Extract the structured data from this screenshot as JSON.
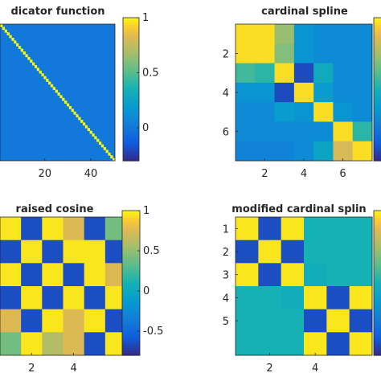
{
  "chart_data": [
    {
      "type": "heatmap",
      "title": "dicator function",
      "grid_size": 50,
      "x_tick_labels": [
        "20",
        "40"
      ],
      "x_tick_values": [
        20,
        40
      ],
      "y_tick_labels": [],
      "colorbar": {
        "min": -0.3,
        "max": 1.0,
        "tick_labels": [
          "1",
          "0.5",
          "0"
        ],
        "tick_values": [
          1,
          0.5,
          0
        ]
      },
      "values": "identity",
      "notes_off_diagonal": 0.0
    },
    {
      "type": "heatmap",
      "title": "cardinal spline",
      "x_tick_labels": [
        "2",
        "4",
        "6"
      ],
      "x_tick_values": [
        2,
        4,
        6
      ],
      "y_tick_labels": [
        "2",
        "4",
        "6"
      ],
      "y_tick_values": [
        2,
        4,
        6
      ],
      "colorbar": {
        "min": -0.3,
        "max": 1.0,
        "tick_labels": [],
        "tick_values": []
      },
      "values": [
        [
          0.95,
          0.95,
          0.65,
          0.15,
          0.1,
          0.1,
          0.1
        ],
        [
          0.95,
          0.95,
          0.6,
          0.15,
          0.1,
          0.1,
          0.1
        ],
        [
          0.45,
          0.4,
          0.95,
          -0.2,
          0.3,
          0.1,
          0.1
        ],
        [
          0.15,
          0.15,
          -0.2,
          0.95,
          0.2,
          0.1,
          0.1
        ],
        [
          0.1,
          0.1,
          0.2,
          0.15,
          0.95,
          0.15,
          0.1
        ],
        [
          0.1,
          0.1,
          0.1,
          0.1,
          0.1,
          0.95,
          0.4
        ],
        [
          0.05,
          0.05,
          0.05,
          0.1,
          0.25,
          0.8,
          0.95
        ]
      ]
    },
    {
      "type": "heatmap",
      "title": "raised cosine",
      "x_tick_labels": [
        "2",
        "4"
      ],
      "x_tick_values": [
        2,
        4
      ],
      "y_tick_labels": [],
      "colorbar": {
        "min": -0.8,
        "max": 1.0,
        "tick_labels": [
          "1",
          "0.5",
          "0",
          "-0.5"
        ],
        "tick_values": [
          1,
          0.5,
          0,
          -0.5
        ]
      },
      "values": [
        [
          0.95,
          -0.65,
          0.95,
          0.75,
          -0.65,
          0.4
        ],
        [
          -0.65,
          0.95,
          -0.65,
          0.95,
          0.95,
          -0.65
        ],
        [
          0.95,
          -0.65,
          0.95,
          -0.65,
          0.95,
          0.75
        ],
        [
          -0.65,
          0.95,
          -0.65,
          0.95,
          -0.65,
          0.95
        ],
        [
          0.75,
          -0.65,
          0.95,
          0.75,
          0.95,
          -0.65
        ],
        [
          0.4,
          0.95,
          0.6,
          0.75,
          -0.65,
          0.95
        ]
      ]
    },
    {
      "type": "heatmap",
      "title": "modified cardinal splin",
      "x_tick_labels": [
        "2",
        "4"
      ],
      "x_tick_values": [
        2,
        4
      ],
      "y_tick_labels": [
        "1",
        "2",
        "3",
        "4",
        "5"
      ],
      "y_tick_values": [
        1,
        2,
        3,
        4,
        5
      ],
      "colorbar": {
        "min": -0.8,
        "max": 1.0,
        "tick_labels": [],
        "tick_values": []
      },
      "values": [
        [
          0.95,
          -0.65,
          0.95,
          0.1,
          0.1,
          0.1
        ],
        [
          -0.65,
          0.95,
          -0.65,
          0.1,
          0.1,
          0.1
        ],
        [
          0.95,
          -0.65,
          0.95,
          0.05,
          0.1,
          0.1
        ],
        [
          0.1,
          0.1,
          0.05,
          0.95,
          -0.65,
          0.95
        ],
        [
          0.1,
          0.1,
          0.1,
          -0.65,
          0.95,
          -0.65
        ],
        [
          0.1,
          0.1,
          0.1,
          0.95,
          -0.65,
          0.95
        ]
      ]
    }
  ]
}
